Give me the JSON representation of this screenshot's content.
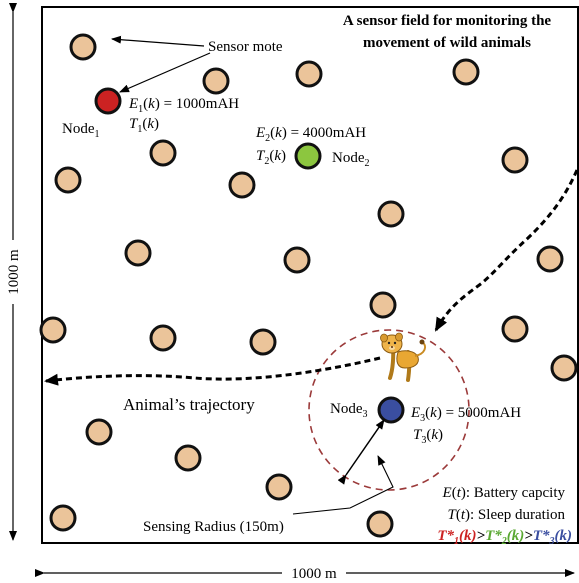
{
  "title": {
    "line1": "A sensor field for monitoring the",
    "line2": "movement of wild animals"
  },
  "dimensions": {
    "width_label": "1000 m",
    "height_label": "1000 m"
  },
  "labels": {
    "sensor_mote": "Sensor mote",
    "trajectory": "Animal’s trajectory",
    "sensing_radius": "Sensing Radius (150m)"
  },
  "nodes": [
    {
      "base": "Node",
      "sub": "1",
      "energy_value": " = 1000mAH",
      "energy_sub": "1",
      "sleep_sub": "1",
      "color": "#cc2222"
    },
    {
      "base": "Node",
      "sub": "2",
      "energy_value": " = 4000mAH",
      "energy_sub": "2",
      "sleep_sub": "2",
      "color": "#8cc63f"
    },
    {
      "base": "Node",
      "sub": "3",
      "energy_value": " = 5000mAH",
      "energy_sub": "3",
      "sleep_sub": "3",
      "color": "#3a4ea0"
    }
  ],
  "legend": {
    "battery": ": Battery capcity",
    "sleep": ": Sleep duration",
    "gt": ">",
    "t1_color": "#cc2222",
    "t2_color": "#5aa832",
    "t3_color": "#3a4ea0"
  },
  "colors": {
    "mote_fill": "#ebc49a",
    "mote_stroke": "#111111",
    "sensing_circle": "#9b3a3a"
  }
}
